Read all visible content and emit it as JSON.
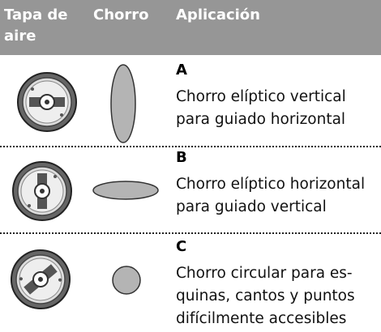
{
  "header": {
    "columns": [
      "Tapa de aire",
      "Chorro",
      "Aplicación"
    ]
  },
  "table": {
    "rows": [
      {
        "letter": "A",
        "description": [
          "Chorro elíptico vertical",
          "para guiado horizontal"
        ]
      },
      {
        "letter": "B",
        "description": [
          "Chorro elíptico horizontal",
          "para guiado vertical"
        ]
      },
      {
        "letter": "C",
        "description": [
          "Chorro circular para es-",
          "quinas, cantos y puntos",
          "difícilmente accesibles"
        ]
      }
    ]
  }
}
